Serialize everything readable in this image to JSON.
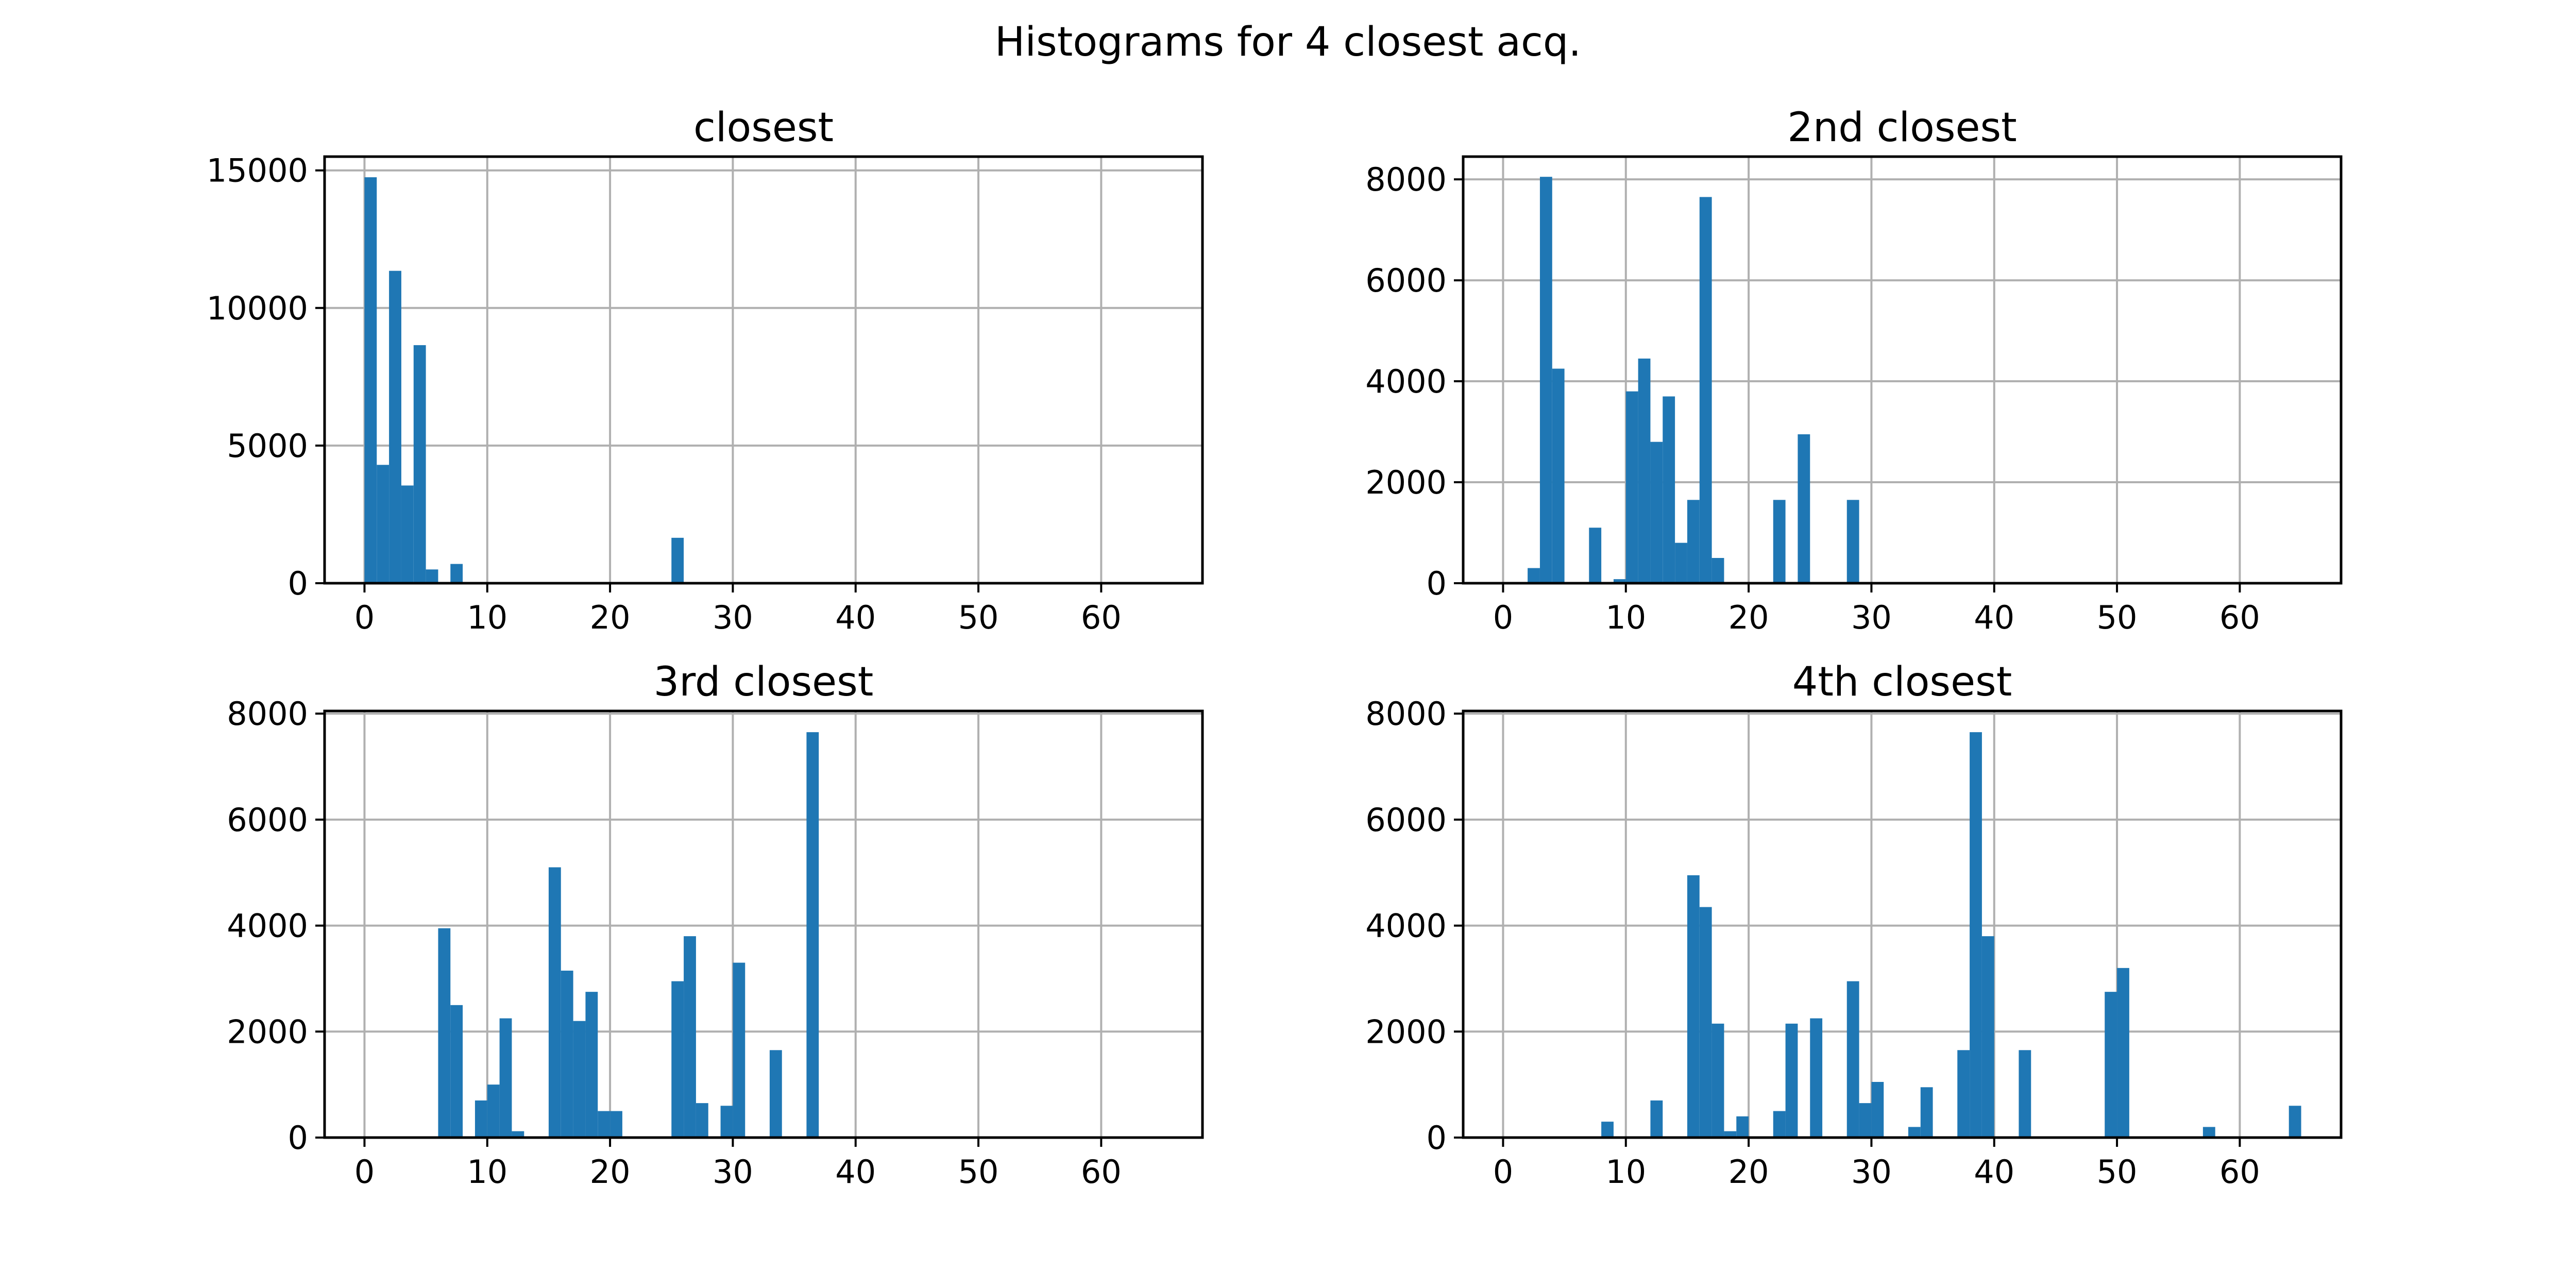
{
  "figure": {
    "title": "Histograms for 4 closest acq."
  },
  "chart_data": [
    {
      "type": "bar",
      "title": "closest",
      "xlabel": "",
      "ylabel": "",
      "xlim": [
        -3.25,
        68.25
      ],
      "ylim": [
        0,
        15500
      ],
      "xticks": [
        0,
        10,
        20,
        30,
        40,
        50,
        60
      ],
      "yticks": [
        0,
        5000,
        10000,
        15000
      ],
      "grid": true,
      "color": "#1f77b4",
      "bin_width": 1,
      "bins": [
        {
          "x": 0,
          "y": 14750
        },
        {
          "x": 1,
          "y": 4300
        },
        {
          "x": 2,
          "y": 11350
        },
        {
          "x": 3,
          "y": 3550
        },
        {
          "x": 4,
          "y": 8650
        },
        {
          "x": 5,
          "y": 500
        },
        {
          "x": 7,
          "y": 700
        },
        {
          "x": 25,
          "y": 1650
        }
      ]
    },
    {
      "type": "bar",
      "title": "2nd closest",
      "xlabel": "",
      "ylabel": "",
      "xlim": [
        -3.25,
        68.25
      ],
      "ylim": [
        0,
        8450
      ],
      "xticks": [
        0,
        10,
        20,
        30,
        40,
        50,
        60
      ],
      "yticks": [
        0,
        2000,
        4000,
        6000,
        8000
      ],
      "grid": true,
      "color": "#1f77b4",
      "bin_width": 1,
      "bins": [
        {
          "x": 2,
          "y": 300
        },
        {
          "x": 3,
          "y": 8050
        },
        {
          "x": 4,
          "y": 4250
        },
        {
          "x": 7,
          "y": 1100
        },
        {
          "x": 9,
          "y": 80
        },
        {
          "x": 10,
          "y": 3800
        },
        {
          "x": 11,
          "y": 4450
        },
        {
          "x": 12,
          "y": 2800
        },
        {
          "x": 13,
          "y": 3700
        },
        {
          "x": 14,
          "y": 800
        },
        {
          "x": 15,
          "y": 1650
        },
        {
          "x": 16,
          "y": 7650
        },
        {
          "x": 17,
          "y": 500
        },
        {
          "x": 22,
          "y": 1650
        },
        {
          "x": 24,
          "y": 2950
        },
        {
          "x": 28,
          "y": 1650
        }
      ]
    },
    {
      "type": "bar",
      "title": "3rd closest",
      "xlabel": "",
      "ylabel": "",
      "xlim": [
        -3.25,
        68.25
      ],
      "ylim": [
        0,
        8050
      ],
      "xticks": [
        0,
        10,
        20,
        30,
        40,
        50,
        60
      ],
      "yticks": [
        0,
        2000,
        4000,
        6000,
        8000
      ],
      "grid": true,
      "color": "#1f77b4",
      "bin_width": 1,
      "bins": [
        {
          "x": 6,
          "y": 3950
        },
        {
          "x": 7,
          "y": 2500
        },
        {
          "x": 9,
          "y": 700
        },
        {
          "x": 10,
          "y": 1000
        },
        {
          "x": 11,
          "y": 2250
        },
        {
          "x": 12,
          "y": 120
        },
        {
          "x": 15,
          "y": 5100
        },
        {
          "x": 16,
          "y": 3150
        },
        {
          "x": 17,
          "y": 2200
        },
        {
          "x": 18,
          "y": 2750
        },
        {
          "x": 19,
          "y": 500
        },
        {
          "x": 20,
          "y": 500
        },
        {
          "x": 25,
          "y": 2950
        },
        {
          "x": 26,
          "y": 3800
        },
        {
          "x": 27,
          "y": 650
        },
        {
          "x": 29,
          "y": 600
        },
        {
          "x": 30,
          "y": 3300
        },
        {
          "x": 33,
          "y": 1650
        },
        {
          "x": 36,
          "y": 7650
        }
      ]
    },
    {
      "type": "bar",
      "title": "4th closest",
      "xlabel": "",
      "ylabel": "",
      "xlim": [
        -3.25,
        68.25
      ],
      "ylim": [
        0,
        8050
      ],
      "xticks": [
        0,
        10,
        20,
        30,
        40,
        50,
        60
      ],
      "yticks": [
        0,
        2000,
        4000,
        6000,
        8000
      ],
      "grid": true,
      "color": "#1f77b4",
      "bin_width": 1,
      "bins": [
        {
          "x": 8,
          "y": 300
        },
        {
          "x": 12,
          "y": 700
        },
        {
          "x": 15,
          "y": 4950
        },
        {
          "x": 16,
          "y": 4350
        },
        {
          "x": 17,
          "y": 2150
        },
        {
          "x": 18,
          "y": 120
        },
        {
          "x": 19,
          "y": 400
        },
        {
          "x": 22,
          "y": 500
        },
        {
          "x": 23,
          "y": 2150
        },
        {
          "x": 25,
          "y": 2250
        },
        {
          "x": 28,
          "y": 2950
        },
        {
          "x": 29,
          "y": 650
        },
        {
          "x": 30,
          "y": 1050
        },
        {
          "x": 33,
          "y": 200
        },
        {
          "x": 34,
          "y": 950
        },
        {
          "x": 37,
          "y": 1650
        },
        {
          "x": 38,
          "y": 7650
        },
        {
          "x": 39,
          "y": 3800
        },
        {
          "x": 42,
          "y": 1650
        },
        {
          "x": 49,
          "y": 2750
        },
        {
          "x": 50,
          "y": 3200
        },
        {
          "x": 57,
          "y": 200
        },
        {
          "x": 64,
          "y": 600
        }
      ]
    }
  ]
}
